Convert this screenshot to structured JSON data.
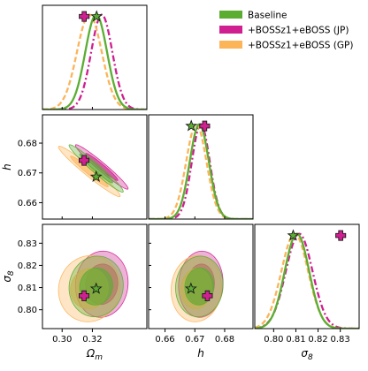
{
  "chart_data": {
    "type": "corner",
    "parameters": [
      {
        "key": "om",
        "label": "Ω_m",
        "range": [
          0.287,
          0.356
        ],
        "ticks": [
          0.3,
          0.32
        ],
        "tick_labels": [
          "0.30",
          "0.32"
        ]
      },
      {
        "key": "h",
        "label": "h",
        "range": [
          0.6545,
          0.6895
        ],
        "ticks": [
          0.66,
          0.67,
          0.68
        ],
        "tick_labels": [
          "0.66",
          "0.67",
          "0.68"
        ]
      },
      {
        "key": "s8",
        "label": "σ_8",
        "range": [
          0.7915,
          0.8385
        ],
        "ticks": [
          0.8,
          0.81,
          0.82,
          0.83
        ],
        "tick_labels": [
          "0.80",
          "0.81",
          "0.82",
          "0.83"
        ]
      }
    ],
    "series": [
      {
        "name": "Baseline",
        "color": "#5bad32",
        "line_style": "solid",
        "marker": "star",
        "mean": {
          "om": 0.3225,
          "h": 0.6715,
          "s8": 0.8105
        },
        "sigma": {
          "om": 0.0072,
          "h": 0.0032,
          "s8": 0.0055
        },
        "corr": {
          "om_h": -0.97,
          "om_s8": 0.05,
          "h_s8": 0.05
        },
        "best_fit": {
          "om": 0.3225,
          "h": 0.6687,
          "s8": 0.8095
        },
        "peak_marker": {
          "om": 0.3228,
          "h": 0.6688,
          "s8": 0.8088
        }
      },
      {
        "name": "+BOSSz1+eBOSS (JP)",
        "color": "#cf1f90",
        "line_style": "dashdot",
        "marker": "plus",
        "mean": {
          "om": 0.3262,
          "h": 0.672,
          "s8": 0.8115
        },
        "sigma": {
          "om": 0.007,
          "h": 0.003,
          "s8": 0.006
        },
        "corr": {
          "om_h": -0.97,
          "om_s8": 0.05,
          "h_s8": 0.05
        },
        "best_fit": {
          "om": 0.3145,
          "h": 0.6742,
          "s8": 0.8063
        },
        "peak_marker": {
          "om": 0.3146,
          "h": 0.6733,
          "s8": 0.8302
        }
      },
      {
        "name": "+BOSSz1+eBOSS (GP)",
        "color": "#fbb458",
        "line_style": "dashed",
        "marker": "none",
        "mean": {
          "om": 0.318,
          "h": 0.6705,
          "s8": 0.8095
        },
        "sigma": {
          "om": 0.0082,
          "h": 0.0034,
          "s8": 0.006
        },
        "corr": {
          "om_h": -0.97,
          "om_s8": 0.05,
          "h_s8": 0.05
        }
      }
    ],
    "legend_position": "top-right",
    "grid": false
  }
}
